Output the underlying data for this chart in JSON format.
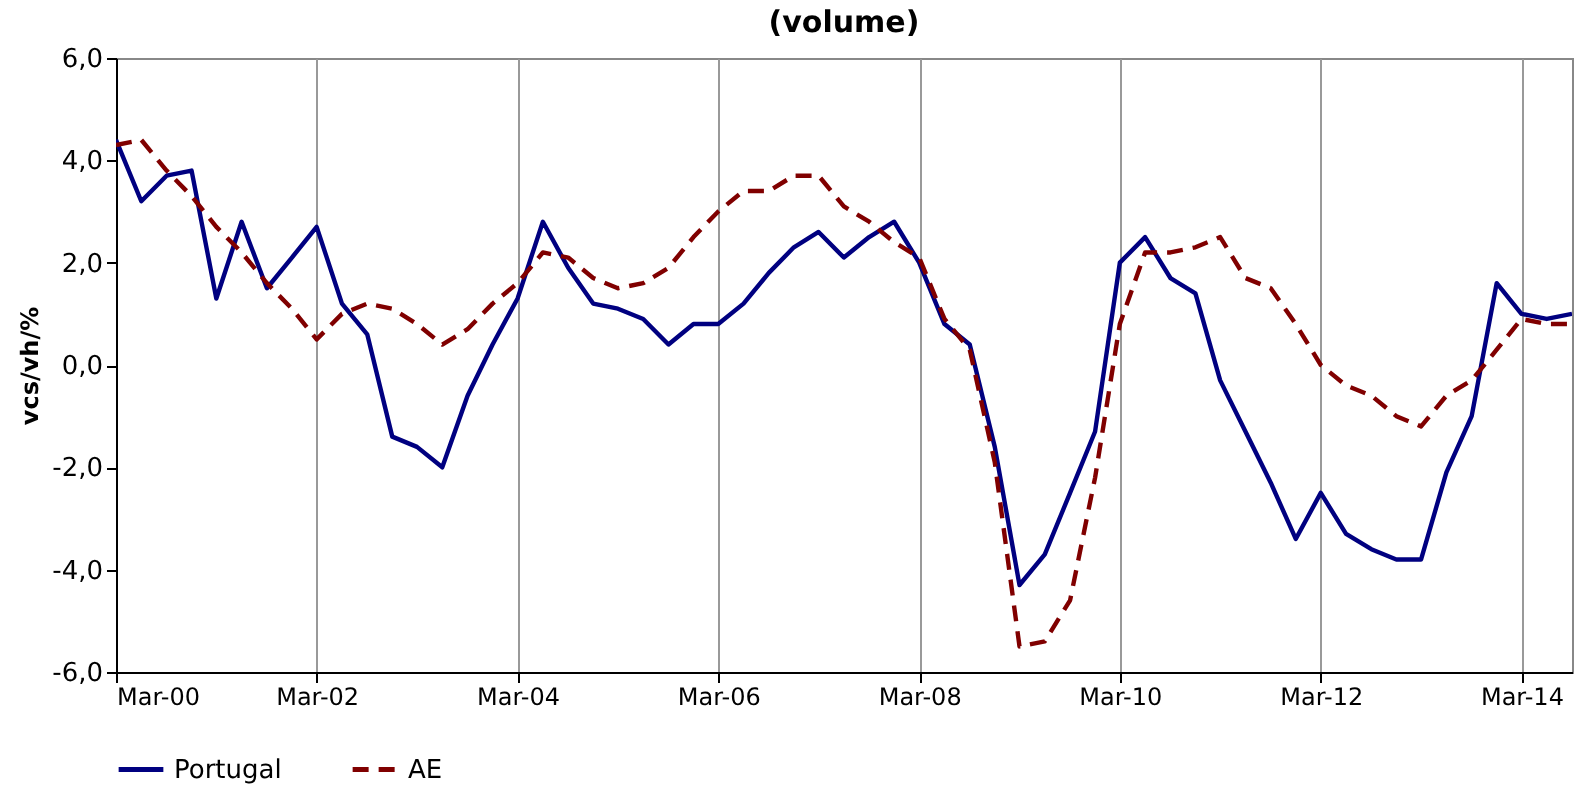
{
  "chart_data": {
    "type": "line",
    "title": "(volume)",
    "ylabel": "vcs/vh/%",
    "x": [
      "2000-03",
      "2000-06",
      "2000-09",
      "2000-12",
      "2001-03",
      "2001-06",
      "2001-09",
      "2001-12",
      "2002-03",
      "2002-06",
      "2002-09",
      "2002-12",
      "2003-03",
      "2003-06",
      "2003-09",
      "2003-12",
      "2004-03",
      "2004-06",
      "2004-09",
      "2004-12",
      "2005-03",
      "2005-06",
      "2005-09",
      "2005-12",
      "2006-03",
      "2006-06",
      "2006-09",
      "2006-12",
      "2007-03",
      "2007-06",
      "2007-09",
      "2007-12",
      "2008-03",
      "2008-06",
      "2008-09",
      "2008-12",
      "2009-03",
      "2009-06",
      "2009-09",
      "2009-12",
      "2010-03",
      "2010-06",
      "2010-09",
      "2010-12",
      "2011-03",
      "2011-06",
      "2011-09",
      "2011-12",
      "2012-03",
      "2012-06",
      "2012-09",
      "2012-12",
      "2013-03",
      "2013-06",
      "2013-09",
      "2013-12",
      "2014-03",
      "2014-06",
      "2014-09"
    ],
    "series": [
      {
        "name": "Portugal",
        "color": "#000080",
        "line_style": "solid",
        "values": [
          4.4,
          3.2,
          3.7,
          3.8,
          1.3,
          2.8,
          1.5,
          2.1,
          2.7,
          1.2,
          0.6,
          -1.4,
          -1.6,
          -2.0,
          -0.6,
          0.4,
          1.3,
          2.8,
          1.9,
          1.2,
          1.1,
          0.9,
          0.4,
          0.8,
          0.8,
          1.2,
          1.8,
          2.3,
          2.6,
          2.1,
          2.5,
          2.8,
          2.0,
          0.8,
          0.4,
          -1.6,
          -4.3,
          -3.7,
          -2.5,
          -1.3,
          2.0,
          2.5,
          1.7,
          1.4,
          -0.3,
          -1.3,
          -2.3,
          -3.4,
          -2.5,
          -3.3,
          -3.6,
          -3.8,
          -3.8,
          -2.1,
          -1.0,
          1.6,
          1.0,
          0.9,
          1.0
        ]
      },
      {
        "name": "AE",
        "color": "#800000",
        "line_style": "dashed",
        "values": [
          4.3,
          4.4,
          3.8,
          3.3,
          2.7,
          2.2,
          1.6,
          1.1,
          0.5,
          1.0,
          1.2,
          1.1,
          0.8,
          0.4,
          0.7,
          1.2,
          1.6,
          2.2,
          2.1,
          1.7,
          1.5,
          1.6,
          1.9,
          2.5,
          3.0,
          3.4,
          3.4,
          3.7,
          3.7,
          3.1,
          2.8,
          2.4,
          2.1,
          0.9,
          0.3,
          -1.9,
          -5.5,
          -5.4,
          -4.6,
          -2.2,
          0.8,
          2.2,
          2.2,
          2.3,
          2.5,
          1.7,
          1.5,
          0.8,
          0.0,
          -0.4,
          -0.6,
          -1.0,
          -1.2,
          -0.6,
          -0.3,
          0.3,
          0.9,
          0.8,
          0.8
        ]
      }
    ],
    "xlim": [
      "2000-03",
      "2014-09"
    ],
    "xticks": [
      {
        "value": "2000-03",
        "label": "Mar-00"
      },
      {
        "value": "2002-03",
        "label": "Mar-02"
      },
      {
        "value": "2004-03",
        "label": "Mar-04"
      },
      {
        "value": "2006-03",
        "label": "Mar-06"
      },
      {
        "value": "2008-03",
        "label": "Mar-08"
      },
      {
        "value": "2010-03",
        "label": "Mar-10"
      },
      {
        "value": "2012-03",
        "label": "Mar-12"
      },
      {
        "value": "2014-03",
        "label": "Mar-14"
      }
    ],
    "ylim": [
      -6,
      6
    ],
    "yticks": [
      {
        "value": -6,
        "label": "-6,0"
      },
      {
        "value": -4,
        "label": "-4,0"
      },
      {
        "value": -2,
        "label": "-2,0"
      },
      {
        "value": 0,
        "label": "0,0"
      },
      {
        "value": 2,
        "label": "2,0"
      },
      {
        "value": 4,
        "label": "4,0"
      },
      {
        "value": 6,
        "label": "6,0"
      }
    ],
    "grid": "x",
    "legend": "bottom"
  }
}
